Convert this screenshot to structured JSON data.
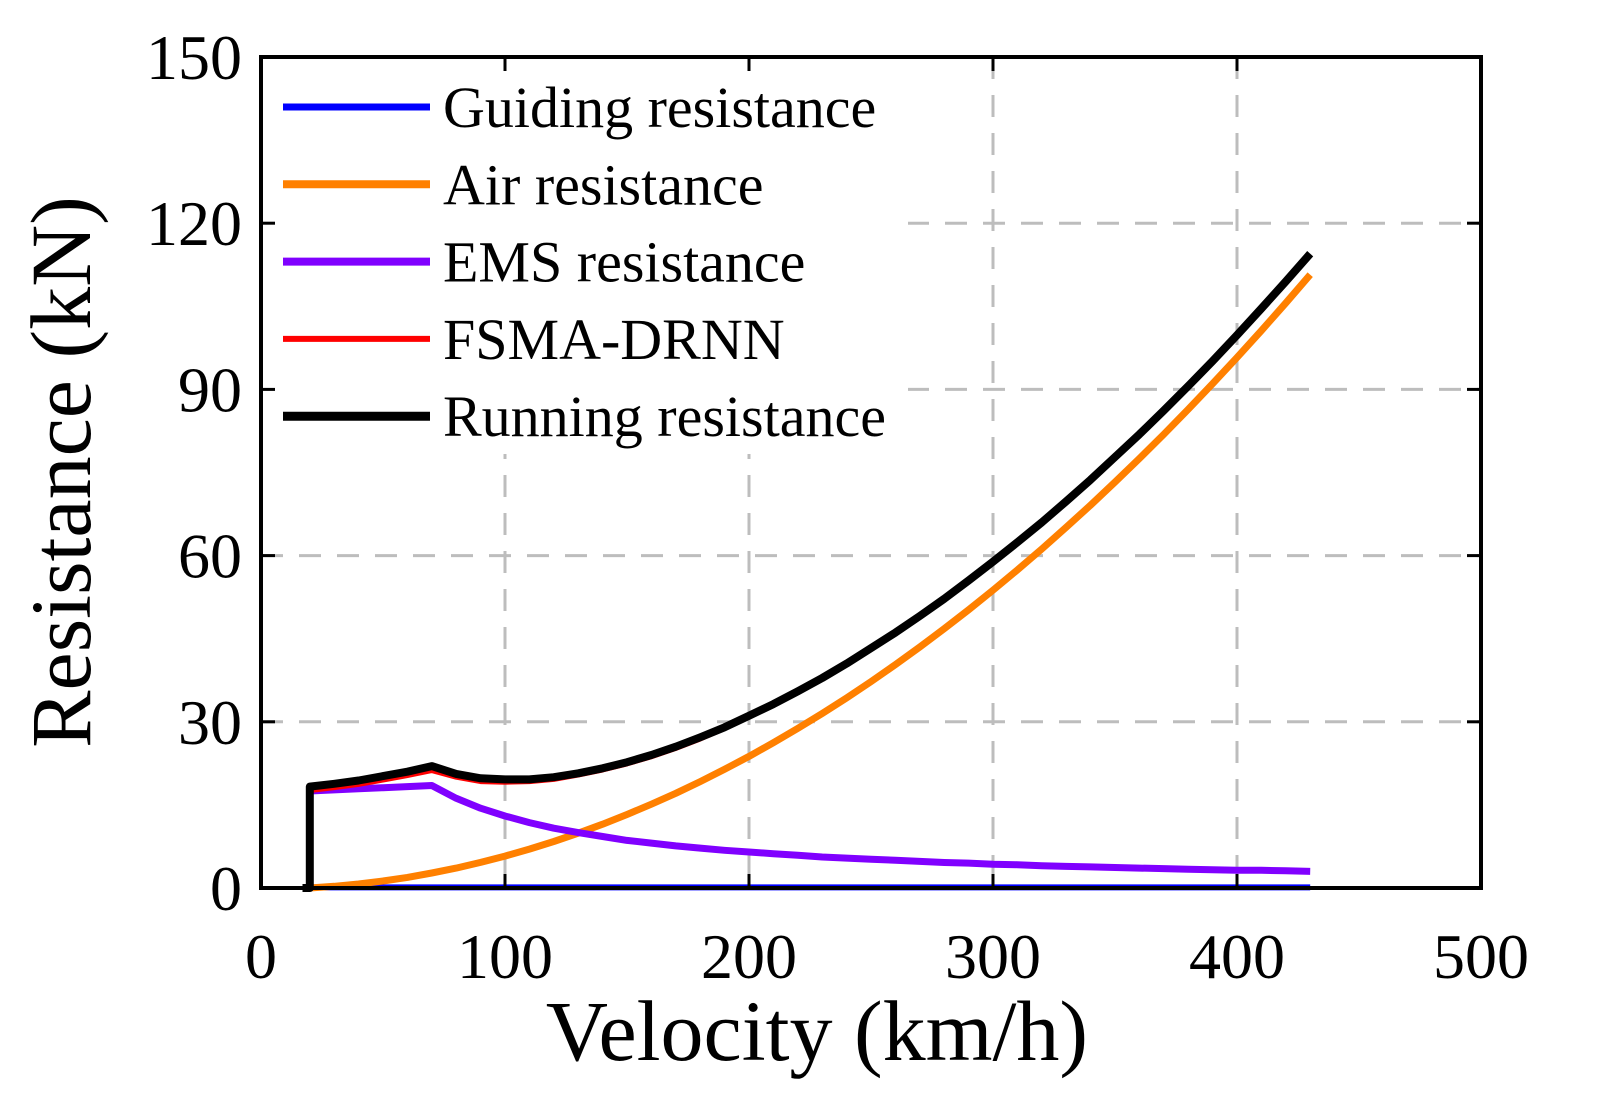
{
  "chart_data": {
    "type": "line",
    "title": "",
    "xlabel": "Velocity (km/h)",
    "ylabel": "Resistance (kN)",
    "xlim": [
      0,
      500
    ],
    "ylim": [
      0,
      150
    ],
    "xticks": [
      0,
      100,
      200,
      300,
      400,
      500
    ],
    "yticks": [
      0,
      30,
      60,
      90,
      120,
      150
    ],
    "xtick_labels": [
      "0",
      "100",
      "200",
      "300",
      "400",
      "500"
    ],
    "ytick_labels": [
      "0",
      "30",
      "60",
      "90",
      "120",
      "150"
    ],
    "grid": true,
    "legend_position": "top-left",
    "x": [
      20,
      30,
      40,
      50,
      60,
      70,
      80,
      90,
      100,
      110,
      120,
      130,
      140,
      150,
      160,
      170,
      180,
      190,
      200,
      210,
      220,
      230,
      240,
      250,
      260,
      270,
      280,
      290,
      300,
      310,
      320,
      330,
      340,
      350,
      360,
      370,
      380,
      390,
      400,
      410,
      420,
      430
    ],
    "series": [
      {
        "name": "Guiding resistance",
        "color": "#0000ff",
        "values": [
          0.1,
          0.1,
          0.1,
          0.1,
          0.1,
          0.1,
          0.1,
          0.1,
          0.1,
          0.1,
          0.1,
          0.1,
          0.1,
          0.1,
          0.1,
          0.1,
          0.1,
          0.1,
          0.1,
          0.1,
          0.1,
          0.1,
          0.1,
          0.1,
          0.1,
          0.1,
          0.1,
          0.1,
          0.1,
          0.1,
          0.1,
          0.1,
          0.1,
          0.1,
          0.1,
          0.1,
          0.1,
          0.1,
          0.1,
          0.1,
          0.1,
          0.1
        ]
      },
      {
        "name": "Air resistance",
        "color": "#ff8000",
        "values": [
          0,
          0.3,
          0.72,
          1.26,
          1.92,
          2.7,
          3.6,
          4.62,
          5.76,
          7.02,
          8.4,
          9.9,
          11.52,
          13.26,
          15.12,
          17.1,
          19.2,
          21.42,
          23.76,
          26.22,
          28.8,
          31.5,
          34.32,
          37.26,
          40.32,
          43.5,
          46.8,
          50.22,
          53.76,
          57.42,
          61.2,
          65.1,
          69.12,
          73.26,
          77.52,
          81.9,
          86.4,
          91.02,
          95.76,
          100.62,
          105.6,
          110.7
        ]
      },
      {
        "name": "EMS resistance",
        "color": "#8000ff",
        "values": [
          17.5,
          17.7,
          17.9,
          18.1,
          18.3,
          18.5,
          16.2,
          14.4,
          13.0,
          11.8,
          10.8,
          10.0,
          9.3,
          8.6,
          8.1,
          7.6,
          7.2,
          6.8,
          6.5,
          6.2,
          5.9,
          5.6,
          5.4,
          5.2,
          5.0,
          4.8,
          4.6,
          4.5,
          4.3,
          4.2,
          4.0,
          3.9,
          3.8,
          3.7,
          3.6,
          3.5,
          3.4,
          3.3,
          3.2,
          3.2,
          3.1,
          3.0
        ]
      },
      {
        "name": "FSMA-DRNN",
        "color": "#ff0000",
        "values": [
          17.6,
          18.1,
          18.7,
          19.5,
          20.3,
          21.2,
          20.0,
          19.2,
          19.1,
          19.2,
          19.6,
          20.4,
          21.3,
          22.4,
          23.7,
          25.2,
          26.9,
          28.8,
          30.9,
          33.0,
          35.3,
          37.7,
          40.3,
          43.1,
          45.9,
          48.9,
          52.0,
          55.3,
          58.7,
          62.2,
          65.8,
          69.6,
          73.5,
          77.6,
          81.7,
          86.0,
          90.4,
          94.9,
          99.6,
          104.4,
          109.3,
          114.3
        ]
      },
      {
        "name": "Running resistance",
        "color": "#000000",
        "x": [
          17,
          20,
          20,
          30,
          40,
          50,
          60,
          70,
          80,
          90,
          100,
          110,
          120,
          130,
          140,
          150,
          160,
          170,
          180,
          190,
          200,
          210,
          220,
          230,
          240,
          250,
          260,
          270,
          280,
          290,
          300,
          310,
          320,
          330,
          340,
          350,
          360,
          370,
          380,
          390,
          400,
          410,
          420,
          430
        ],
        "values": [
          0,
          0,
          18.3,
          18.8,
          19.4,
          20.2,
          21.0,
          22.0,
          20.6,
          19.8,
          19.6,
          19.6,
          20.0,
          20.7,
          21.6,
          22.7,
          24.0,
          25.5,
          27.2,
          29.0,
          31.1,
          33.2,
          35.5,
          37.9,
          40.5,
          43.3,
          46.1,
          49.1,
          52.2,
          55.5,
          58.9,
          62.4,
          66.0,
          69.8,
          73.7,
          77.8,
          81.9,
          86.2,
          90.6,
          95.1,
          99.8,
          104.6,
          109.5,
          114.5
        ]
      }
    ]
  }
}
